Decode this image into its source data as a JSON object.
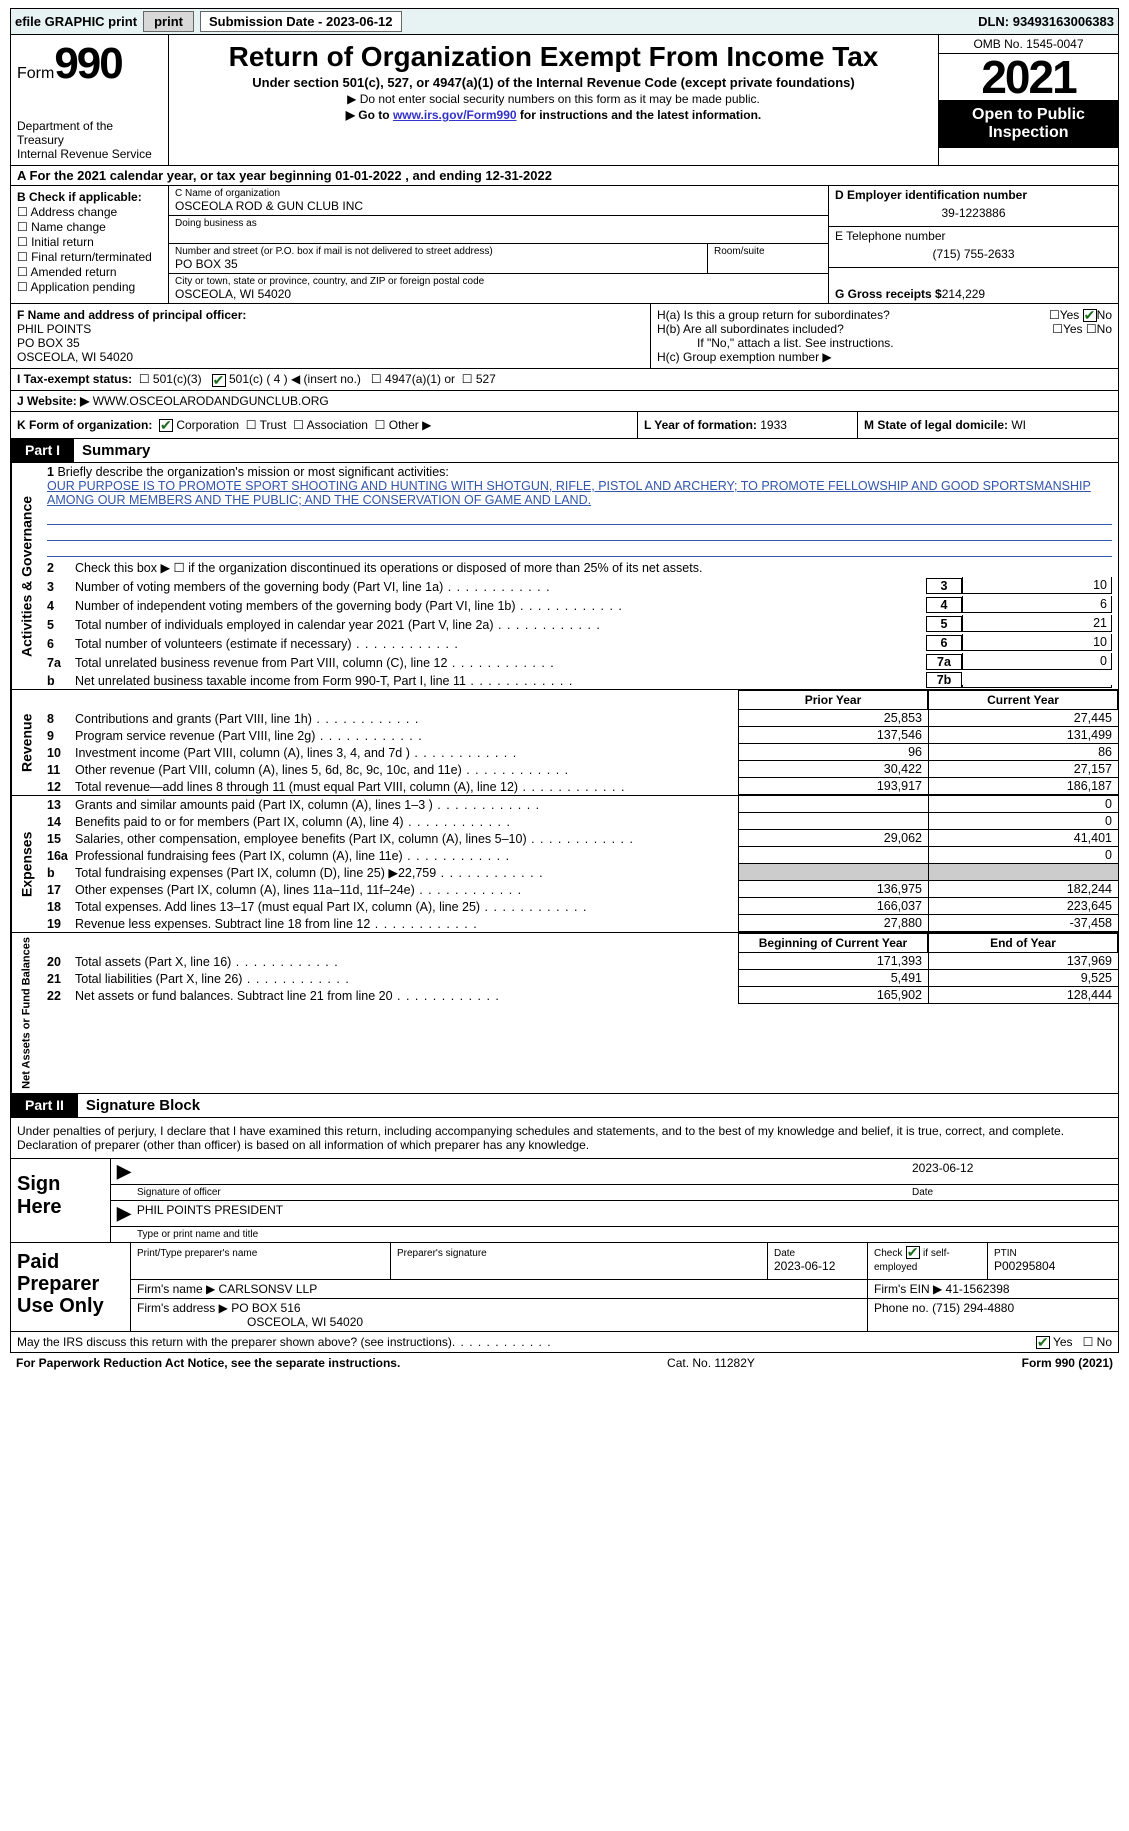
{
  "topbar": {
    "efile": "efile GRAPHIC print ",
    "submission_label": "Submission Date - ",
    "submission_date": "2023-06-12",
    "dln_label": "DLN: ",
    "dln": "93493163006383"
  },
  "header": {
    "form_word": "Form",
    "form_num": "990",
    "dept": "Department of the Treasury\nInternal Revenue Service",
    "title": "Return of Organization Exempt From Income Tax",
    "sub1": "Under section 501(c), 527, or 4947(a)(1) of the Internal Revenue Code (except private foundations)",
    "sub2": "▶ Do not enter social security numbers on this form as it may be made public.",
    "sub3_pre": "▶ Go to ",
    "sub3_link": "www.irs.gov/Form990",
    "sub3_post": " for instructions and the latest information.",
    "omb": "OMB No. 1545-0047",
    "year": "2021",
    "otp": "Open to Public Inspection"
  },
  "A": {
    "text_pre": "A For the 2021 calendar year, or tax year beginning ",
    "begin": "01-01-2022",
    "mid": "   , and ending ",
    "end": "12-31-2022"
  },
  "B": {
    "label": "B Check if applicable:",
    "items": [
      "Address change",
      "Name change",
      "Initial return",
      "Final return/terminated",
      "Amended return",
      "Application pending"
    ]
  },
  "C": {
    "name_label": "C Name of organization",
    "name": "OSCEOLA ROD & GUN CLUB INC",
    "dba_label": "Doing business as",
    "addr_label": "Number and street (or P.O. box if mail is not delivered to street address)",
    "addr": "PO BOX 35",
    "room_label": "Room/suite",
    "city_label": "City or town, state or province, country, and ZIP or foreign postal code",
    "city": "OSCEOLA, WI  54020"
  },
  "D": {
    "label": "D Employer identification number",
    "value": "39-1223886"
  },
  "E": {
    "label": "E Telephone number",
    "value": "(715) 755-2633"
  },
  "G": {
    "label": "G Gross receipts $ ",
    "value": "214,229"
  },
  "F": {
    "label": "F  Name and address of principal officer:",
    "name": "PHIL POINTS",
    "addr": "PO BOX 35",
    "city": "OSCEOLA, WI  54020"
  },
  "H": {
    "a": "H(a)  Is this a group return for subordinates?",
    "b": "H(b)  Are all subordinates included?",
    "bnote": "If \"No,\" attach a list. See instructions.",
    "c": "H(c)  Group exemption number ▶",
    "yes": "Yes",
    "no": "No"
  },
  "I": {
    "label": "I    Tax-exempt status:",
    "o1": "501(c)(3)",
    "o2": "501(c) ( 4 ) ◀ (insert no.)",
    "o3": "4947(a)(1) or",
    "o4": "527"
  },
  "J": {
    "label": "J   Website: ▶ ",
    "value": "WWW.OSCEOLARODANDGUNCLUB.ORG"
  },
  "K": {
    "label": "K Form of organization:",
    "corp": "Corporation",
    "trust": "Trust",
    "assoc": "Association",
    "other": "Other ▶"
  },
  "L": {
    "label": "L Year of formation: ",
    "value": "1933"
  },
  "M": {
    "label": "M State of legal domicile: ",
    "value": "WI"
  },
  "part1": {
    "hdr": "Part I",
    "title": "Summary"
  },
  "summary": {
    "q1": "Briefly describe the organization's mission or most significant activities:",
    "mission": "OUR PURPOSE IS TO PROMOTE SPORT SHOOTING AND HUNTING WITH SHOTGUN, RIFLE, PISTOL AND ARCHERY; TO PROMOTE FELLOWSHIP AND GOOD SPORTSMANSHIP AMONG OUR MEMBERS AND THE PUBLIC; AND THE CONSERVATION OF GAME AND LAND.",
    "q2": "Check this box ▶ ☐  if the organization discontinued its operations or disposed of more than 25% of its net assets.",
    "rows": [
      {
        "n": "3",
        "t": "Number of voting members of the governing body (Part VI, line 1a)",
        "b": "3",
        "v": "10"
      },
      {
        "n": "4",
        "t": "Number of independent voting members of the governing body (Part VI, line 1b)",
        "b": "4",
        "v": "6"
      },
      {
        "n": "5",
        "t": "Total number of individuals employed in calendar year 2021 (Part V, line 2a)",
        "b": "5",
        "v": "21"
      },
      {
        "n": "6",
        "t": "Total number of volunteers (estimate if necessary)",
        "b": "6",
        "v": "10"
      },
      {
        "n": "7a",
        "t": "Total unrelated business revenue from Part VIII, column (C), line 12",
        "b": "7a",
        "v": "0"
      },
      {
        "n": "b",
        "t": "Net unrelated business taxable income from Form 990-T, Part I, line 11",
        "b": "7b",
        "v": ""
      }
    ],
    "prior": "Prior Year",
    "current": "Current Year",
    "revenue_label": "Revenue",
    "revenue": [
      {
        "n": "8",
        "t": "Contributions and grants (Part VIII, line 1h)",
        "p": "25,853",
        "c": "27,445"
      },
      {
        "n": "9",
        "t": "Program service revenue (Part VIII, line 2g)",
        "p": "137,546",
        "c": "131,499"
      },
      {
        "n": "10",
        "t": "Investment income (Part VIII, column (A), lines 3, 4, and 7d )",
        "p": "96",
        "c": "86"
      },
      {
        "n": "11",
        "t": "Other revenue (Part VIII, column (A), lines 5, 6d, 8c, 9c, 10c, and 11e)",
        "p": "30,422",
        "c": "27,157"
      },
      {
        "n": "12",
        "t": "Total revenue—add lines 8 through 11 (must equal Part VIII, column (A), line 12)",
        "p": "193,917",
        "c": "186,187"
      }
    ],
    "expenses_label": "Expenses",
    "expenses": [
      {
        "n": "13",
        "t": "Grants and similar amounts paid (Part IX, column (A), lines 1–3 )",
        "p": "",
        "c": "0"
      },
      {
        "n": "14",
        "t": "Benefits paid to or for members (Part IX, column (A), line 4)",
        "p": "",
        "c": "0"
      },
      {
        "n": "15",
        "t": "Salaries, other compensation, employee benefits (Part IX, column (A), lines 5–10)",
        "p": "29,062",
        "c": "41,401"
      },
      {
        "n": "16a",
        "t": "Professional fundraising fees (Part IX, column (A), line 11e)",
        "p": "",
        "c": "0"
      },
      {
        "n": "b",
        "t": "Total fundraising expenses (Part IX, column (D), line 25) ▶22,759",
        "p": "GREY",
        "c": "GREY"
      },
      {
        "n": "17",
        "t": "Other expenses (Part IX, column (A), lines 11a–11d, 11f–24e)",
        "p": "136,975",
        "c": "182,244"
      },
      {
        "n": "18",
        "t": "Total expenses. Add lines 13–17 (must equal Part IX, column (A), line 25)",
        "p": "166,037",
        "c": "223,645"
      },
      {
        "n": "19",
        "t": "Revenue less expenses. Subtract line 18 from line 12",
        "p": "27,880",
        "c": "-37,458"
      }
    ],
    "netassets_label": "Net Assets or Fund Balances",
    "boy": "Beginning of Current Year",
    "eoy": "End of Year",
    "netassets": [
      {
        "n": "20",
        "t": "Total assets (Part X, line 16)",
        "p": "171,393",
        "c": "137,969"
      },
      {
        "n": "21",
        "t": "Total liabilities (Part X, line 26)",
        "p": "5,491",
        "c": "9,525"
      },
      {
        "n": "22",
        "t": "Net assets or fund balances. Subtract line 21 from line 20",
        "p": "165,902",
        "c": "128,444"
      }
    ],
    "gov_label": "Activities & Governance"
  },
  "part2": {
    "hdr": "Part II",
    "title": "Signature Block"
  },
  "sig": {
    "decl": "Under penalties of perjury, I declare that I have examined this return, including accompanying schedules and statements, and to the best of my knowledge and belief, it is true, correct, and complete. Declaration of preparer (other than officer) is based on all information of which preparer has any knowledge.",
    "sign_here": "Sign Here",
    "sig_officer": "Signature of officer",
    "date": "Date",
    "sig_date": "2023-06-12",
    "name_title": "PHIL POINTS  PRESIDENT",
    "name_title_label": "Type or print name and title"
  },
  "prep": {
    "label": "Paid Preparer Use Only",
    "print_name_label": "Print/Type preparer's name",
    "sig_label": "Preparer's signature",
    "date_label": "Date",
    "date": "2023-06-12",
    "check_label": "Check",
    "self_emp": "if self-employed",
    "ptin_label": "PTIN",
    "ptin": "P00295804",
    "firm_name_label": "Firm's name   ▶ ",
    "firm_name": "CARLSONSV LLP",
    "firm_ein_label": "Firm's EIN ▶ ",
    "firm_ein": "41-1562398",
    "firm_addr_label": "Firm's address ▶ ",
    "firm_addr1": "PO BOX 516",
    "firm_addr2": "OSCEOLA, WI  54020",
    "phone_label": "Phone no. ",
    "phone": "(715) 294-4880"
  },
  "footer": {
    "discuss": "May the IRS discuss this return with the preparer shown above? (see instructions)",
    "yes": "Yes",
    "no": "No",
    "pra": "For Paperwork Reduction Act Notice, see the separate instructions.",
    "cat": "Cat. No. 11282Y",
    "form": "Form 990 (2021)"
  }
}
